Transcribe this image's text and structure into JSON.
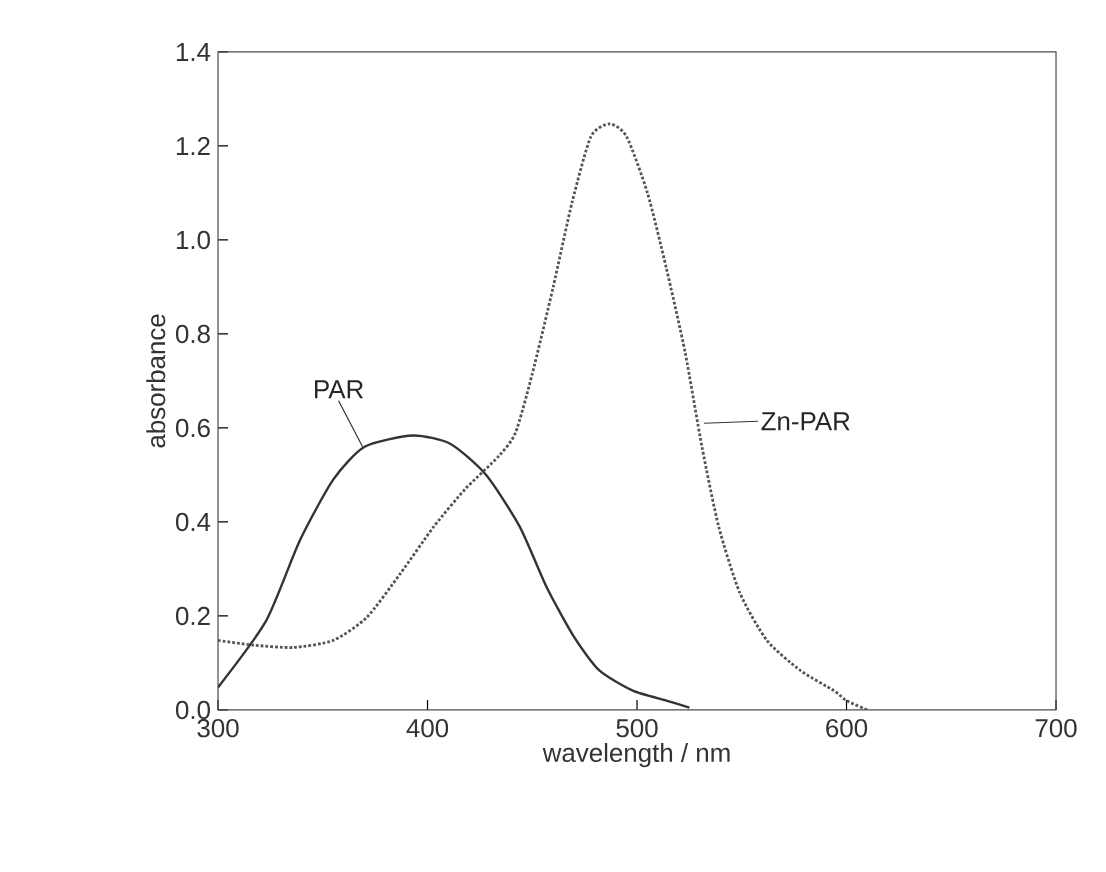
{
  "chart_data": {
    "type": "line",
    "xlabel": "wavelength / nm",
    "ylabel": "absorbance",
    "xlim": [
      300,
      700
    ],
    "xticks": [
      300,
      400,
      500,
      600,
      700
    ],
    "ylim": [
      0,
      1.4
    ],
    "yticks": [
      {
        "value": 0,
        "label": "0.0"
      },
      {
        "value": 0.2,
        "label": "0.2"
      },
      {
        "value": 0.4,
        "label": "0.4"
      },
      {
        "value": 0.6,
        "label": "0.6"
      },
      {
        "value": 0.8,
        "label": "0.8"
      },
      {
        "value": 1.0,
        "label": "1.0"
      },
      {
        "value": 1.2,
        "label": "1.2"
      },
      {
        "value": 1.4,
        "label": "1.4"
      }
    ],
    "series": [
      {
        "color": "#333333",
        "line_style": "solid",
        "x": [
          300,
          323,
          339,
          355,
          370,
          393,
          411,
          428,
          444,
          457,
          470,
          482,
          498,
          514,
          525
        ],
        "values": [
          0.048,
          0.19,
          0.36,
          0.49,
          0.56,
          0.584,
          0.566,
          0.5,
          0.39,
          0.26,
          0.155,
          0.084,
          0.041,
          0.02,
          0.005
        ]
      },
      {
        "color": "#555555",
        "line_style": "dotted",
        "x": [
          300,
          317,
          336,
          355,
          371,
          387,
          403,
          418,
          434,
          442,
          450,
          460,
          469,
          478,
          487,
          495,
          505,
          514,
          523,
          531,
          539,
          549,
          562,
          578,
          594,
          600,
          610
        ],
        "values": [
          0.148,
          0.138,
          0.133,
          0.148,
          0.197,
          0.29,
          0.39,
          0.47,
          0.54,
          0.59,
          0.715,
          0.9,
          1.08,
          1.22,
          1.247,
          1.22,
          1.1,
          0.94,
          0.76,
          0.56,
          0.39,
          0.25,
          0.148,
          0.084,
          0.041,
          0.02,
          0.0
        ]
      }
    ],
    "annotations": [
      {
        "text": "PAR",
        "x": 369,
        "y": 0.56
      },
      {
        "text": "Zn-PAR",
        "x": 532,
        "y": 0.61
      }
    ]
  }
}
